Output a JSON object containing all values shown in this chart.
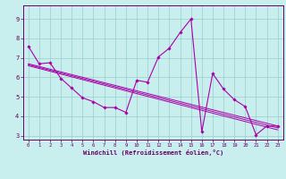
{
  "background_color": "#c8eeee",
  "line_color": "#aa00aa",
  "marker_color": "#aa00aa",
  "grid_color": "#99cccc",
  "axis_color": "#660066",
  "xlabel": "Windchill (Refroidissement éolien,°C)",
  "xlim": [
    -0.5,
    23.5
  ],
  "ylim": [
    2.8,
    9.7
  ],
  "yticks": [
    3,
    4,
    5,
    6,
    7,
    8,
    9
  ],
  "xticks": [
    0,
    1,
    2,
    3,
    4,
    5,
    6,
    7,
    8,
    9,
    10,
    11,
    12,
    13,
    14,
    15,
    16,
    17,
    18,
    19,
    20,
    21,
    22,
    23
  ],
  "main_x": [
    0,
    1,
    2,
    3,
    4,
    5,
    6,
    7,
    8,
    9,
    10,
    11,
    12,
    13,
    14,
    15,
    16,
    17,
    18,
    19,
    20,
    21,
    22,
    23
  ],
  "main_y": [
    7.6,
    6.7,
    6.75,
    5.95,
    5.45,
    4.95,
    4.75,
    4.45,
    4.45,
    4.2,
    5.85,
    5.75,
    7.05,
    7.5,
    8.3,
    9.0,
    3.2,
    6.2,
    5.4,
    4.85,
    4.5,
    3.05,
    3.5,
    3.5
  ],
  "trend1_x": [
    0,
    23
  ],
  "trend1_y": [
    6.7,
    3.5
  ],
  "trend2_x": [
    0,
    23
  ],
  "trend2_y": [
    6.65,
    3.4
  ],
  "trend3_x": [
    0,
    23
  ],
  "trend3_y": [
    6.6,
    3.3
  ],
  "title_fontsize": 5,
  "xlabel_fontsize": 5,
  "xtick_fontsize": 4,
  "ytick_fontsize": 5
}
